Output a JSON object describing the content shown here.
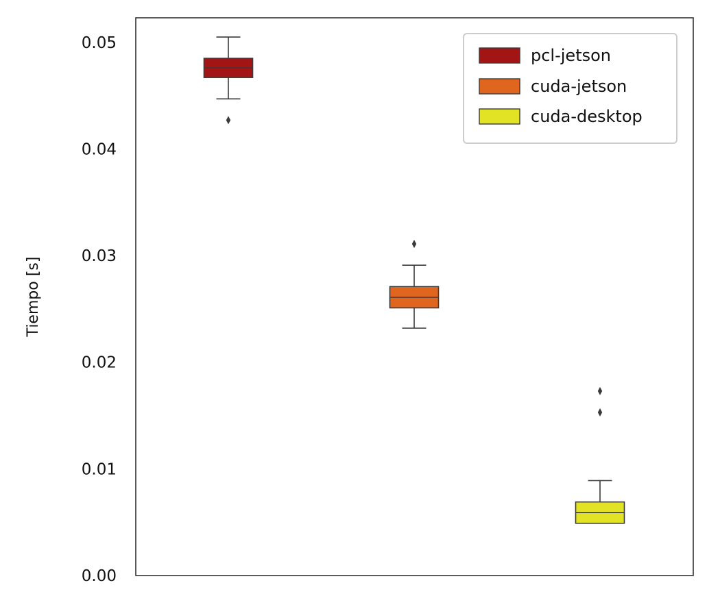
{
  "chart_data": {
    "type": "boxplot",
    "title": "",
    "xlabel": "",
    "ylabel": "Tiempo [s]",
    "ylim": [
      0.0,
      0.0523
    ],
    "yticks": [
      0.0,
      0.01,
      0.02,
      0.03,
      0.04,
      0.05
    ],
    "ytick_labels": [
      "0.00",
      "0.01",
      "0.02",
      "0.03",
      "0.04",
      "0.05"
    ],
    "grid": false,
    "legend_position": "top-right",
    "series": [
      {
        "name": "pcl-jetson",
        "color": "#a31414",
        "whisker_low": 0.0447,
        "q1": 0.0467,
        "median": 0.0476,
        "q3": 0.0485,
        "whisker_high": 0.0505,
        "outliers": [
          0.0427
        ]
      },
      {
        "name": "cuda-jetson",
        "color": "#e06620",
        "whisker_low": 0.0232,
        "q1": 0.0251,
        "median": 0.0261,
        "q3": 0.0271,
        "whisker_high": 0.0291,
        "outliers": [
          0.0311
        ]
      },
      {
        "name": "cuda-desktop",
        "color": "#e3e325",
        "whisker_low": 0.0049,
        "q1": 0.0049,
        "median": 0.0059,
        "q3": 0.0069,
        "whisker_high": 0.0089,
        "outliers": [
          0.0153,
          0.0173
        ]
      }
    ]
  }
}
